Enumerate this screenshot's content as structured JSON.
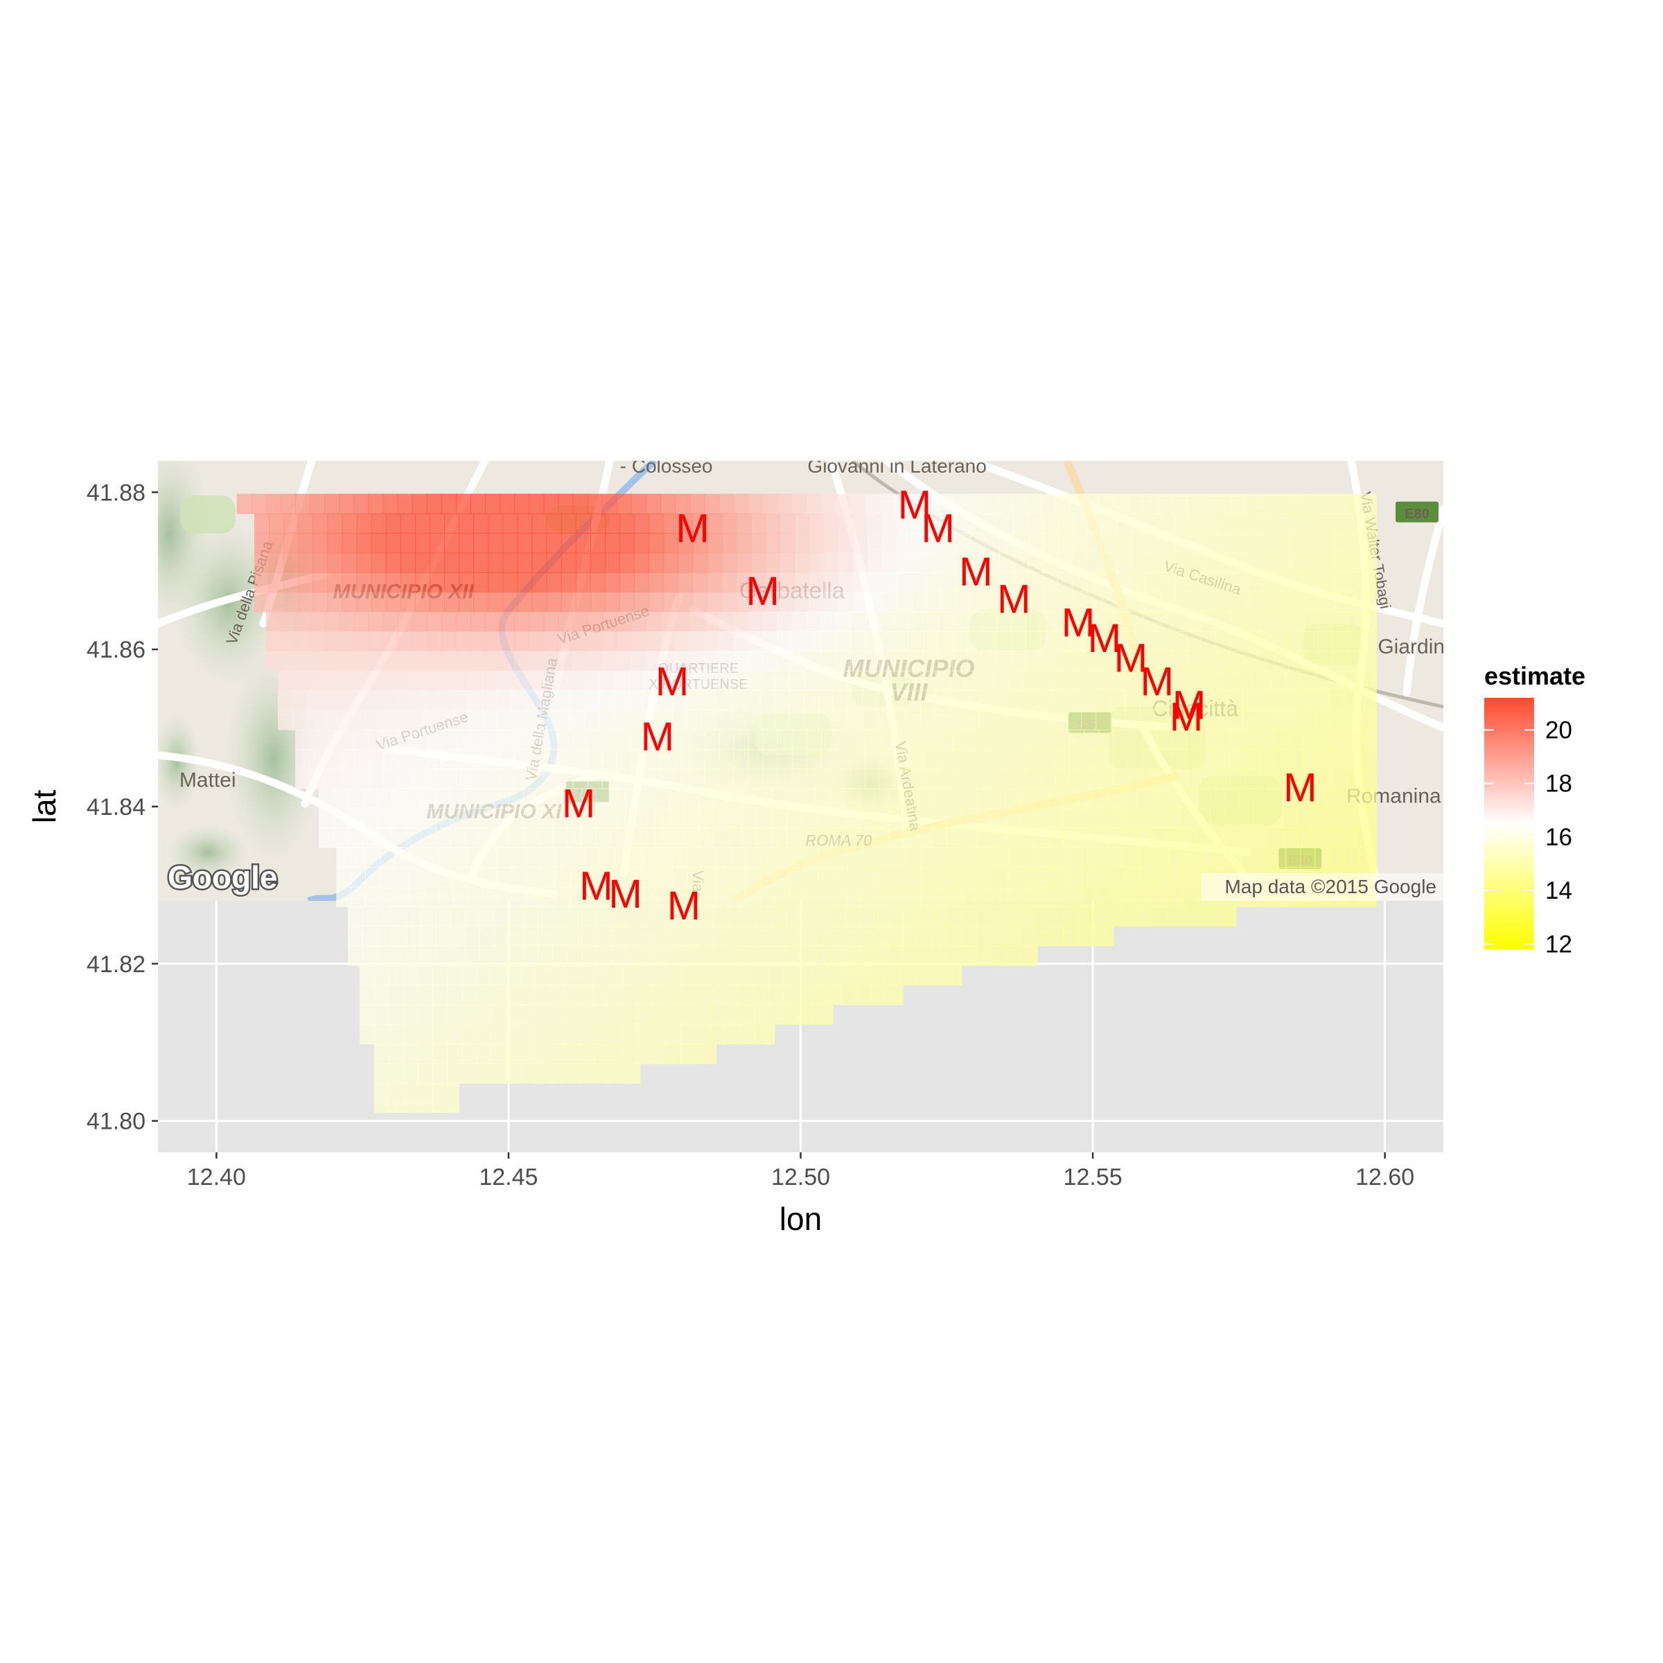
{
  "chart_data": {
    "type": "heatmap",
    "title": "",
    "xlabel": "lon",
    "ylabel": "lat",
    "xlim": [
      12.39,
      12.61
    ],
    "ylim": [
      41.796,
      41.884
    ],
    "x_ticks": [
      "12.40",
      "12.45",
      "12.50",
      "12.55",
      "12.60"
    ],
    "y_ticks": [
      "41.80",
      "41.82",
      "41.84",
      "41.86",
      "41.88"
    ],
    "grid": true,
    "legend": {
      "title": "estimate",
      "position": "right",
      "ticks": [
        12,
        14,
        16,
        18,
        20
      ],
      "range": [
        11.8,
        21.2
      ],
      "colors": {
        "low": "#ffff00",
        "mid": "#ffffff",
        "high": "#ff4a2e"
      },
      "midpoint": 16.5
    },
    "basemap": {
      "extent": {
        "lon": [
          12.39,
          12.61
        ],
        "lat": [
          41.828,
          41.884
        ]
      },
      "labels": [
        {
          "text": "- Colosseo",
          "lon": 12.477,
          "lat": 41.8825
        },
        {
          "text": "Giovanni in Laterano",
          "lon": 12.5165,
          "lat": 41.8825
        },
        {
          "text": "MUNICIPIO XII",
          "lon": 12.432,
          "lat": 41.8665
        },
        {
          "text": "Garbatella",
          "lon": 12.4985,
          "lat": 41.8665
        },
        {
          "text": "Via Casilina",
          "lon": 12.5685,
          "lat": 41.8685
        },
        {
          "text": "Giardine",
          "lon": 12.6055,
          "lat": 41.8595
        },
        {
          "text": "MUNICIPIO",
          "lon": 12.5185,
          "lat": 41.8565
        },
        {
          "text": "VIII",
          "lon": 12.5185,
          "lat": 41.8535
        },
        {
          "text": "QUARTIERE",
          "lon": 12.4825,
          "lat": 41.857
        },
        {
          "text": "X PORTUENSE",
          "lon": 12.4825,
          "lat": 41.855
        },
        {
          "text": "Via Portuense",
          "lon": 12.4355,
          "lat": 41.849
        },
        {
          "text": "Via Portuense",
          "lon": 12.4665,
          "lat": 41.8625
        },
        {
          "text": "Via della Pisana",
          "lon": 12.4065,
          "lat": 41.867
        },
        {
          "text": "Via della Magliana",
          "lon": 12.4565,
          "lat": 41.851
        },
        {
          "text": "Via Ardeatina",
          "lon": 12.5175,
          "lat": 41.8425
        },
        {
          "text": "Via Walter Tobagi",
          "lon": 12.5975,
          "lat": 41.8725
        },
        {
          "text": "Mattei",
          "lon": 12.3985,
          "lat": 41.8425
        },
        {
          "text": "MUNICIPIO XI",
          "lon": 12.4475,
          "lat": 41.8385
        },
        {
          "text": "ROMA 70",
          "lon": 12.5065,
          "lat": 41.835
        },
        {
          "text": "Cinecittà",
          "lon": 12.5675,
          "lat": 41.8515
        },
        {
          "text": "Romanina",
          "lon": 12.6015,
          "lat": 41.8405
        },
        {
          "text": "Via",
          "lon": 12.4815,
          "lat": 41.8305
        }
      ],
      "shields": [
        {
          "text": "E80",
          "lon": 12.6055,
          "lat": 41.8774
        },
        {
          "text": "SS7",
          "lon": 12.5495,
          "lat": 41.8506
        },
        {
          "text": "E80",
          "lon": 12.5855,
          "lat": 41.8333
        },
        {
          "text": "A91",
          "lon": 12.4635,
          "lat": 41.8418
        }
      ],
      "logo": "Google",
      "attribution": "Map data ©2015 Google"
    },
    "estimate_model": {
      "base": 15.6,
      "lon_slope": -12,
      "lat_slope": 20,
      "lon_center": 12.5,
      "lat_center": 41.84,
      "hotspots": [
        {
          "lon": 12.452,
          "lat": 41.874,
          "amplitude": 5.5,
          "sd_lon": 0.03,
          "sd_lat": 0.008
        }
      ],
      "cell": {
        "dlon": 0.0025,
        "dlat": 0.0025
      }
    },
    "grid_extent": {
      "lon": [
        12.4035,
        12.5985
      ],
      "lat": [
        41.8011,
        41.8798
      ],
      "row_lon_limits": [
        {
          "lat_min": 41.877,
          "lon_min": 12.4035,
          "lon_max": 12.5985
        },
        {
          "lat_min": 41.866,
          "lon_min": 12.4065,
          "lon_max": 12.5985
        },
        {
          "lat_min": 41.858,
          "lon_min": 12.4085,
          "lon_max": 12.5985
        },
        {
          "lat_min": 41.851,
          "lon_min": 12.4105,
          "lon_max": 12.5985
        },
        {
          "lat_min": 41.842,
          "lon_min": 12.4135,
          "lon_max": 12.5985
        },
        {
          "lat_min": 41.8345,
          "lon_min": 12.4175,
          "lon_max": 12.5985
        },
        {
          "lat_min": 41.8275,
          "lon_min": 12.4205,
          "lon_max": 12.5985
        },
        {
          "lat_min": 41.826,
          "lon_min": 12.4225,
          "lon_max": 12.5745
        },
        {
          "lat_min": 41.8245,
          "lon_min": 12.4225,
          "lon_max": 12.5645
        },
        {
          "lat_min": 41.8225,
          "lon_min": 12.4225,
          "lon_max": 12.5535
        },
        {
          "lat_min": 41.8192,
          "lon_min": 12.4225,
          "lon_max": 12.5405
        },
        {
          "lat_min": 41.8168,
          "lon_min": 12.4245,
          "lon_max": 12.5275
        },
        {
          "lat_min": 41.8142,
          "lon_min": 12.4245,
          "lon_max": 12.5175
        },
        {
          "lat_min": 41.8115,
          "lon_min": 12.4245,
          "lon_max": 12.5055
        },
        {
          "lat_min": 41.8091,
          "lon_min": 12.4245,
          "lon_max": 12.4955
        },
        {
          "lat_min": 41.8064,
          "lon_min": 12.427,
          "lon_max": 12.4855
        },
        {
          "lat_min": 41.8039,
          "lon_min": 12.427,
          "lon_max": 12.4725
        },
        {
          "lat_min": 41.8011,
          "lon_min": 12.427,
          "lon_max": 12.4415
        }
      ]
    },
    "markers": {
      "label": "M",
      "color": "#ff0000",
      "points": [
        {
          "lon": 12.4815,
          "lat": 41.8755
        },
        {
          "lon": 12.4935,
          "lat": 41.8675
        },
        {
          "lon": 12.5195,
          "lat": 41.8785
        },
        {
          "lon": 12.5235,
          "lat": 41.8755
        },
        {
          "lon": 12.53,
          "lat": 41.87
        },
        {
          "lon": 12.5365,
          "lat": 41.8665
        },
        {
          "lon": 12.5475,
          "lat": 41.8635
        },
        {
          "lon": 12.552,
          "lat": 41.8615
        },
        {
          "lon": 12.5565,
          "lat": 41.859
        },
        {
          "lon": 12.561,
          "lat": 41.856
        },
        {
          "lon": 12.5665,
          "lat": 41.853
        },
        {
          "lon": 12.566,
          "lat": 41.8515
        },
        {
          "lon": 12.5855,
          "lat": 41.8425
        },
        {
          "lon": 12.478,
          "lat": 41.856
        },
        {
          "lon": 12.4755,
          "lat": 41.849
        },
        {
          "lon": 12.462,
          "lat": 41.8405
        },
        {
          "lon": 12.465,
          "lat": 41.83
        },
        {
          "lon": 12.47,
          "lat": 41.829
        },
        {
          "lon": 12.48,
          "lat": 41.8275
        }
      ]
    }
  }
}
